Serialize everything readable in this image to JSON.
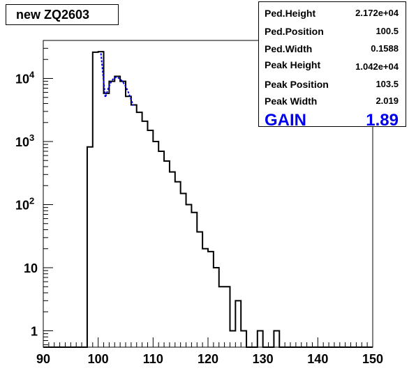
{
  "title": "new ZQ2603",
  "stats": [
    {
      "label": "Ped.Height",
      "value": "2.172e+04"
    },
    {
      "label": "Ped.Position",
      "value": "100.5"
    },
    {
      "label": "Ped.Width",
      "value": "0.1588"
    },
    {
      "label": "Peak Height",
      "value": "1.042e+04"
    },
    {
      "label": "Peak Position",
      "value": "103.5"
    },
    {
      "label": "Peak Width",
      "value": "2.019"
    }
  ],
  "gain": {
    "label": "GAIN",
    "value": "1.89"
  },
  "colors": {
    "histogram": "#000000",
    "fit": "#0000ee",
    "gain_text": "#0000ee"
  },
  "chart_data": {
    "type": "histogram",
    "xlim": [
      90,
      150
    ],
    "ylim": [
      0.55,
      40000
    ],
    "yscale": "log",
    "bin_width": 1,
    "bin_start": 98,
    "counts": [
      820,
      26000,
      26500,
      5800,
      9000,
      10800,
      9000,
      5200,
      3800,
      2900,
      2100,
      1500,
      1000,
      700,
      490,
      330,
      230,
      150,
      100,
      75,
      37,
      20,
      18,
      10,
      5,
      5,
      1,
      3,
      1,
      0,
      0,
      1,
      0,
      0,
      1
    ],
    "fit_x": [
      100.5,
      101,
      101.3,
      101.8,
      102.3,
      102.8,
      103.2,
      103.6,
      104,
      104.5,
      105,
      105.5,
      106,
      106.4
    ],
    "fit_y": [
      25000,
      9000,
      5000,
      6800,
      8600,
      10000,
      10400,
      10300,
      9800,
      8800,
      7500,
      6000,
      4600,
      3700
    ],
    "x_ticks": [
      "90",
      "100",
      "110",
      "120",
      "130",
      "140",
      "150"
    ],
    "y_ticks": [
      {
        "value": 1,
        "label": "1"
      },
      {
        "value": 10,
        "label": "10"
      },
      {
        "value": 100,
        "label": "10",
        "sup": "2"
      },
      {
        "value": 1000,
        "label": "10",
        "sup": "3"
      },
      {
        "value": 10000,
        "label": "10",
        "sup": "4"
      }
    ]
  }
}
